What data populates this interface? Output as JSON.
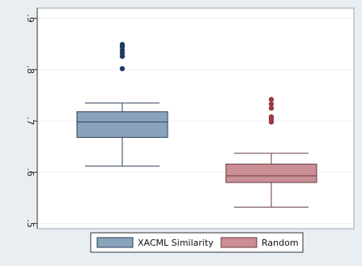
{
  "chart_data": {
    "type": "box",
    "title": "",
    "xlabel": "",
    "ylabel": "",
    "ylim": [
      0.49,
      0.92
    ],
    "yticks": [
      {
        "value": 0.5,
        "label": ".5"
      },
      {
        "value": 0.6,
        "label": ".6"
      },
      {
        "value": 0.7,
        "label": ".7"
      },
      {
        "value": 0.8,
        "label": ".8"
      },
      {
        "value": 0.9,
        "label": ".9"
      }
    ],
    "grid": true,
    "legend_position": "bottom",
    "series": [
      {
        "name": "XACML Similarity",
        "color": "#8aa3bd",
        "edge": "#2f3f55",
        "outlier_color": "#1f3a5f",
        "whisker_low": 0.612,
        "q1": 0.668,
        "median": 0.698,
        "q3": 0.718,
        "whisker_high": 0.735,
        "outliers": [
          0.802,
          0.826,
          0.832,
          0.838,
          0.845,
          0.849
        ]
      },
      {
        "name": "Random",
        "color": "#c98f94",
        "edge": "#6a3a3f",
        "outlier_color": "#9a3a42",
        "whisker_low": 0.532,
        "q1": 0.58,
        "median": 0.593,
        "q3": 0.616,
        "whisker_high": 0.637,
        "outliers": [
          0.698,
          0.703,
          0.708,
          0.725,
          0.733,
          0.742
        ]
      }
    ]
  }
}
